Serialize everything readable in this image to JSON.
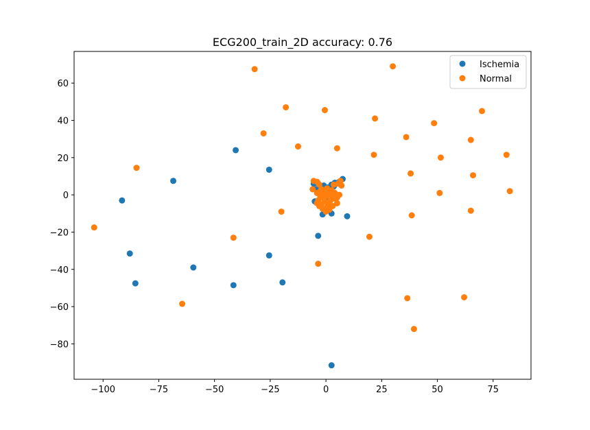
{
  "chart_data": {
    "type": "scatter",
    "title": "ECG200_train_2D  accuracy: 0.76",
    "xlabel": "",
    "ylabel": "",
    "xlim": [
      -113,
      92
    ],
    "ylim": [
      -99,
      77
    ],
    "xticks": [
      -100,
      -75,
      -50,
      -25,
      0,
      25,
      50,
      75
    ],
    "yticks": [
      -80,
      -60,
      -40,
      -20,
      0,
      20,
      40,
      60
    ],
    "xtick_labels": [
      "−100",
      "−75",
      "−50",
      "−25",
      "0",
      "25",
      "50",
      "75"
    ],
    "ytick_labels": [
      "−80",
      "−60",
      "−40",
      "−20",
      "0",
      "20",
      "40",
      "60"
    ],
    "grid": false,
    "legend_position": "top-right",
    "series": [
      {
        "name": "Ischemia",
        "color": "#1f77b4",
        "points": [
          [
            -40.5,
            24
          ],
          [
            -25.5,
            13.5
          ],
          [
            -68.5,
            7.5
          ],
          [
            -91.5,
            -3
          ],
          [
            -88,
            -31.5
          ],
          [
            -85.5,
            -47.5
          ],
          [
            -59.5,
            -39
          ],
          [
            -41.5,
            -48.5
          ],
          [
            -25.5,
            -32.5
          ],
          [
            -19.5,
            -47
          ],
          [
            -3.5,
            -22
          ],
          [
            2.5,
            -91.5
          ],
          [
            9.5,
            -11.5
          ],
          [
            7.5,
            8.5
          ],
          [
            6,
            7
          ],
          [
            4,
            6.5
          ],
          [
            2.5,
            5.5
          ],
          [
            -1,
            5
          ],
          [
            -2.5,
            4
          ],
          [
            -4.5,
            3
          ],
          [
            -3.5,
            6
          ],
          [
            -5,
            -3.5
          ],
          [
            -1.5,
            -10.5
          ],
          [
            2.5,
            -10
          ],
          [
            1,
            4
          ],
          [
            3.5,
            4.5
          ],
          [
            -2,
            0
          ],
          [
            1,
            -2
          ],
          [
            -5.5,
            6
          ]
        ]
      },
      {
        "name": "Normal",
        "color": "#ff7f0e",
        "points": [
          [
            -32,
            67.5
          ],
          [
            30,
            69
          ],
          [
            -18,
            47
          ],
          [
            -0.5,
            45.5
          ],
          [
            22,
            41
          ],
          [
            70,
            45
          ],
          [
            -28,
            33
          ],
          [
            48.5,
            38.5
          ],
          [
            36,
            31
          ],
          [
            -12.5,
            26
          ],
          [
            5,
            25
          ],
          [
            65,
            29.5
          ],
          [
            21.5,
            21.5
          ],
          [
            51.5,
            20
          ],
          [
            81,
            21.5
          ],
          [
            -85,
            14.5
          ],
          [
            38,
            11.5
          ],
          [
            66,
            10.5
          ],
          [
            82.5,
            2
          ],
          [
            51,
            1
          ],
          [
            -20,
            -9
          ],
          [
            38.5,
            -11
          ],
          [
            65,
            -8.5
          ],
          [
            -104,
            -17.5
          ],
          [
            -41.5,
            -23
          ],
          [
            19.5,
            -22.5
          ],
          [
            -3.5,
            -37
          ],
          [
            -64.5,
            -58.5
          ],
          [
            36.5,
            -55.5
          ],
          [
            62,
            -55
          ],
          [
            39.5,
            -72
          ],
          [
            -5.5,
            7.5
          ],
          [
            -4,
            7
          ],
          [
            -3,
            5.5
          ],
          [
            -6,
            3
          ],
          [
            -4,
            1
          ],
          [
            -2.5,
            -1
          ],
          [
            -3.5,
            -3
          ],
          [
            -2,
            -5
          ],
          [
            -3,
            -6
          ],
          [
            -1.5,
            -7.5
          ],
          [
            0,
            -9
          ],
          [
            1,
            -4.5
          ],
          [
            2,
            -3
          ],
          [
            1.5,
            -1
          ],
          [
            0.5,
            1.5
          ],
          [
            2.5,
            2.5
          ],
          [
            4,
            1
          ],
          [
            5,
            -1.5
          ],
          [
            6,
            0
          ],
          [
            5,
            -4.5
          ],
          [
            3,
            -6
          ],
          [
            1.5,
            -8
          ],
          [
            -0.5,
            -3.5
          ],
          [
            -1,
            1.5
          ],
          [
            0.5,
            3.5
          ],
          [
            -2,
            3
          ],
          [
            3.5,
            5.5
          ],
          [
            5.5,
            6
          ],
          [
            6.5,
            7.5
          ],
          [
            7,
            5
          ],
          [
            4,
            -2
          ],
          [
            2,
            -1.5
          ],
          [
            -1,
            -2
          ],
          [
            -2.5,
            2
          ],
          [
            1,
            0
          ],
          [
            -4,
            -4.5
          ],
          [
            0.5,
            -6.5
          ],
          [
            3,
            0.5
          ],
          [
            -1.5,
            -1
          ],
          [
            0,
            0.5
          ]
        ]
      }
    ]
  }
}
